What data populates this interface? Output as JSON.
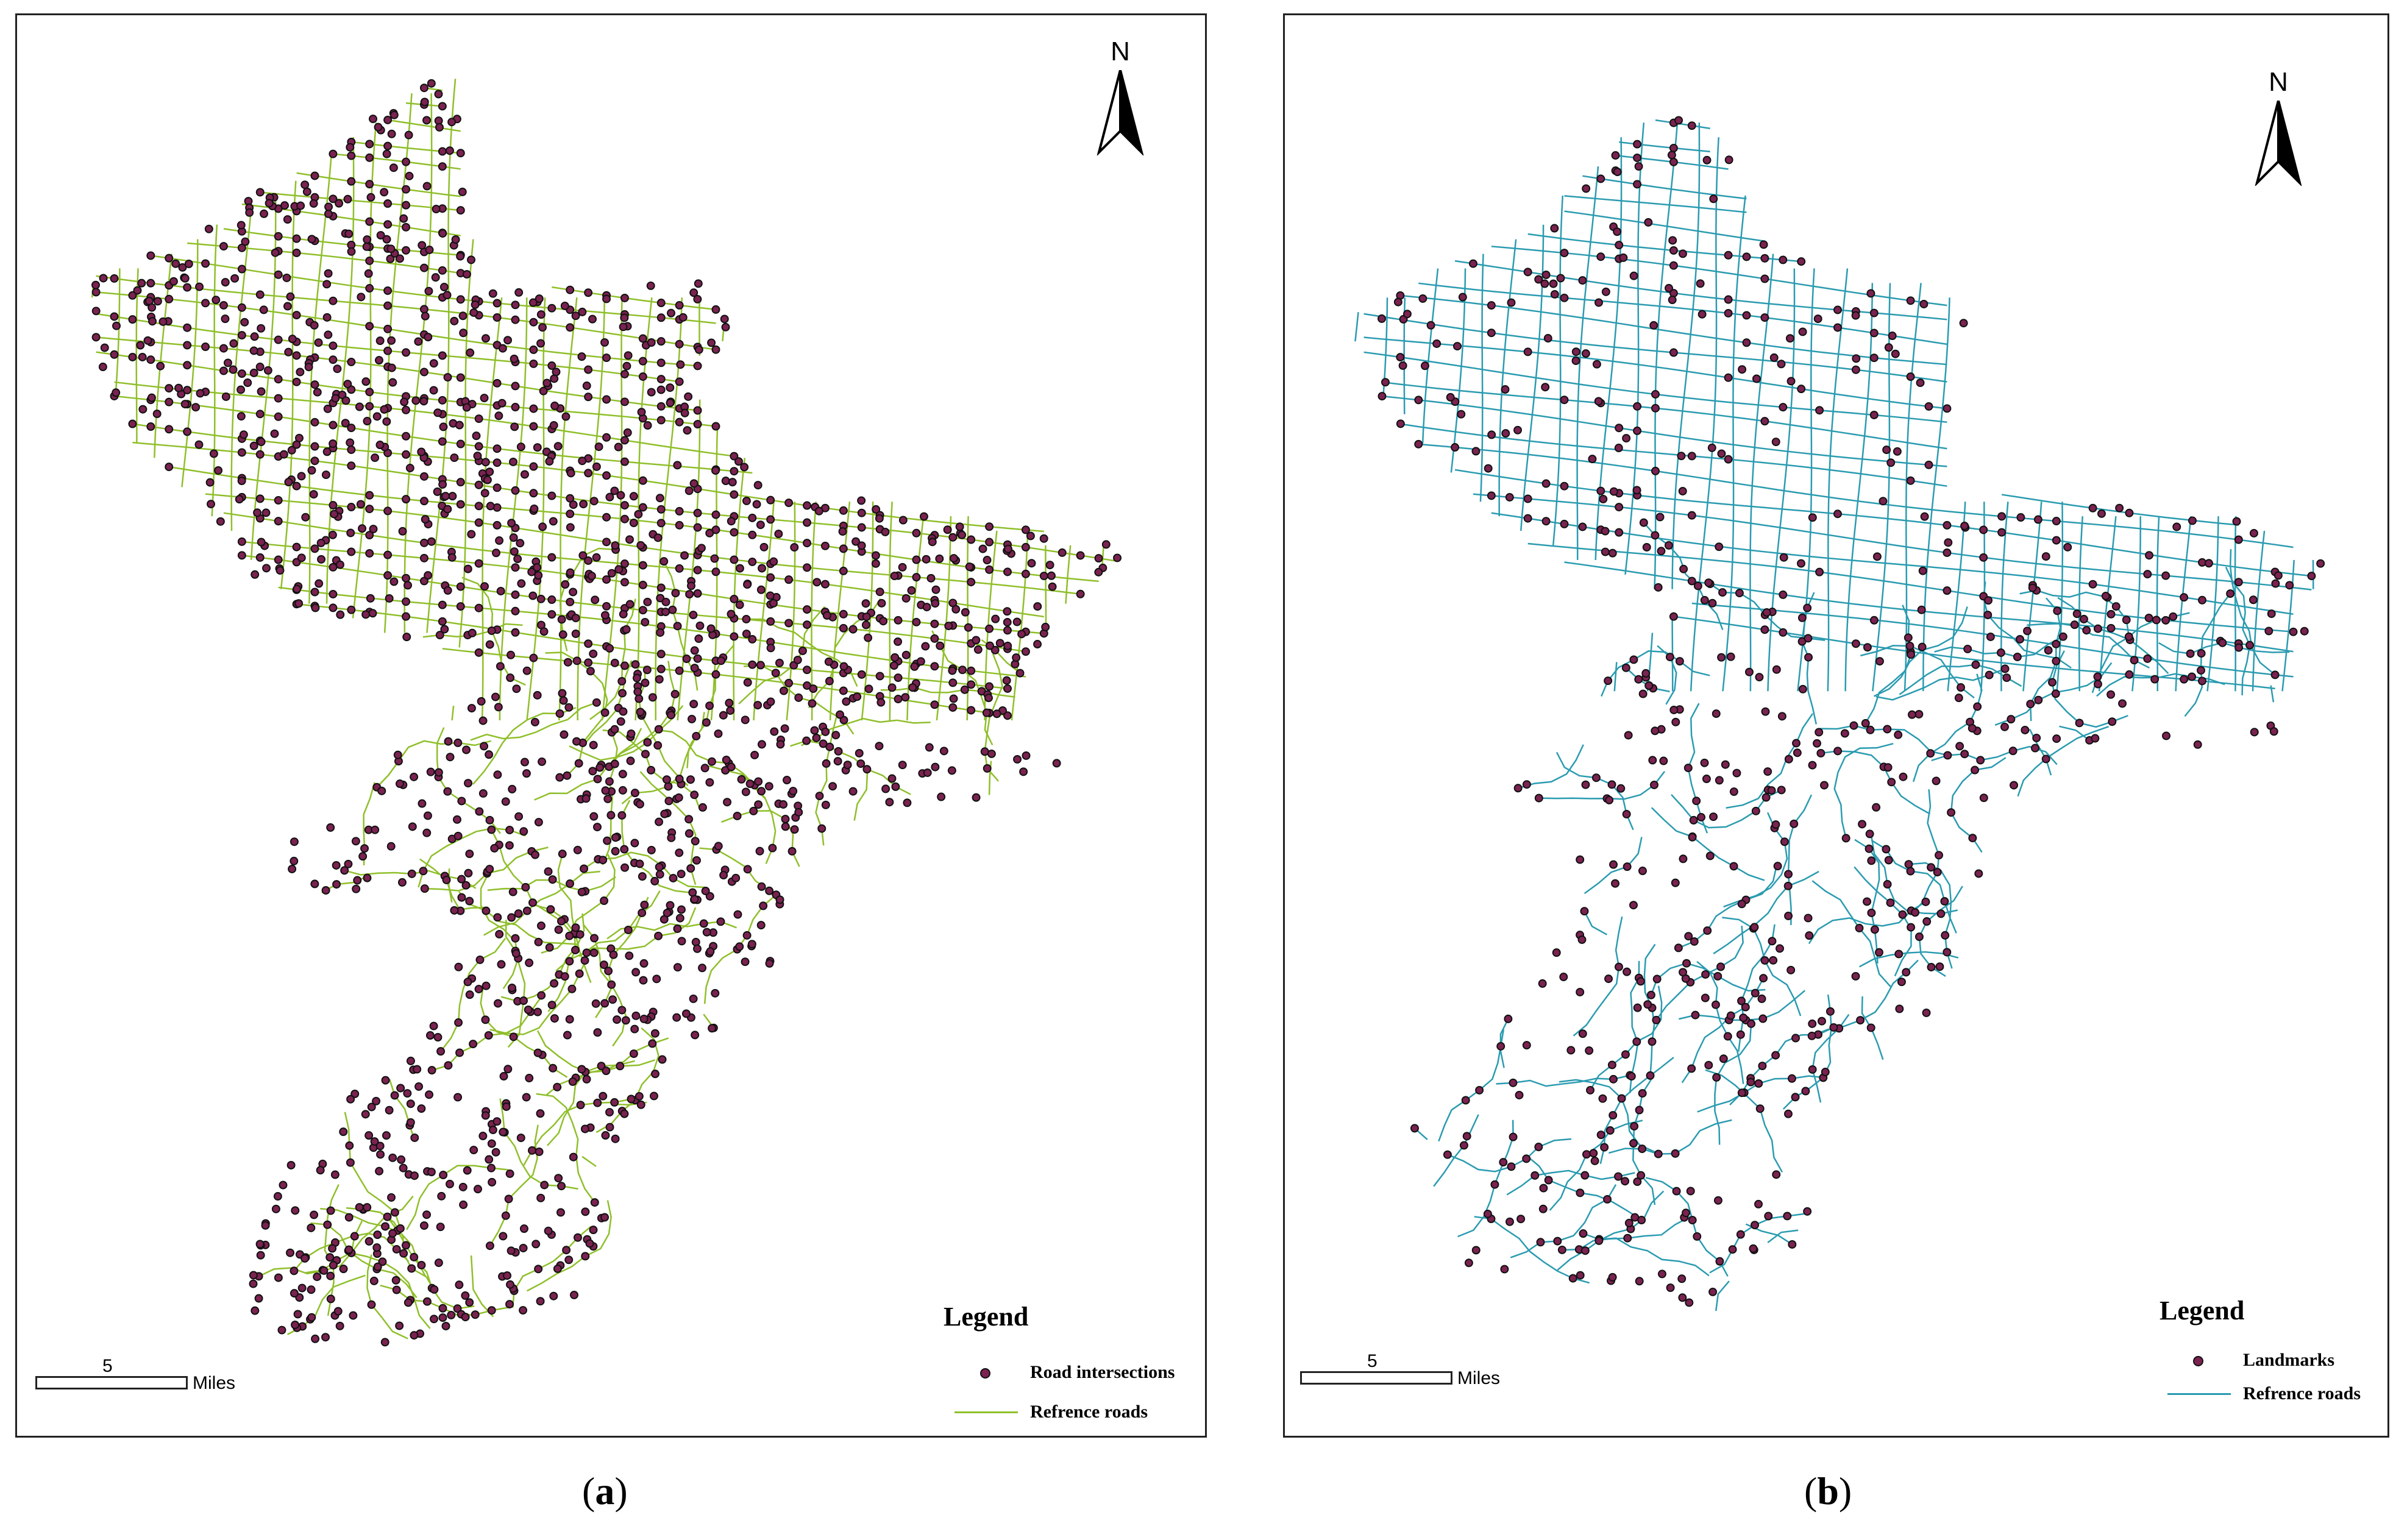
{
  "panels": [
    {
      "id": "a",
      "caption_open": "(",
      "caption_letter": "a",
      "caption_close": ")",
      "north_label": "N",
      "legend_title": "Legend",
      "legend_items": [
        {
          "label": "Road intersections",
          "symbol": "dot",
          "color": "#7a2250"
        },
        {
          "label": "Refrence roads",
          "symbol": "line",
          "color": "#8fbf2a"
        }
      ],
      "scale_value": "5",
      "scale_unit": "Miles",
      "road_color": "#8fbf2a",
      "point_color": "#7a2250"
    },
    {
      "id": "b",
      "caption_open": "(",
      "caption_letter": "b",
      "caption_close": ")",
      "north_label": "N",
      "legend_title": "Legend",
      "legend_items": [
        {
          "label": "Landmarks",
          "symbol": "dot",
          "color": "#7a2250"
        },
        {
          "label": "Refrence roads",
          "symbol": "line",
          "color": "#2a9bb0"
        }
      ],
      "scale_value": "5",
      "scale_unit": "Miles",
      "road_color": "#2a9bb0",
      "point_color": "#7a2250"
    }
  ]
}
